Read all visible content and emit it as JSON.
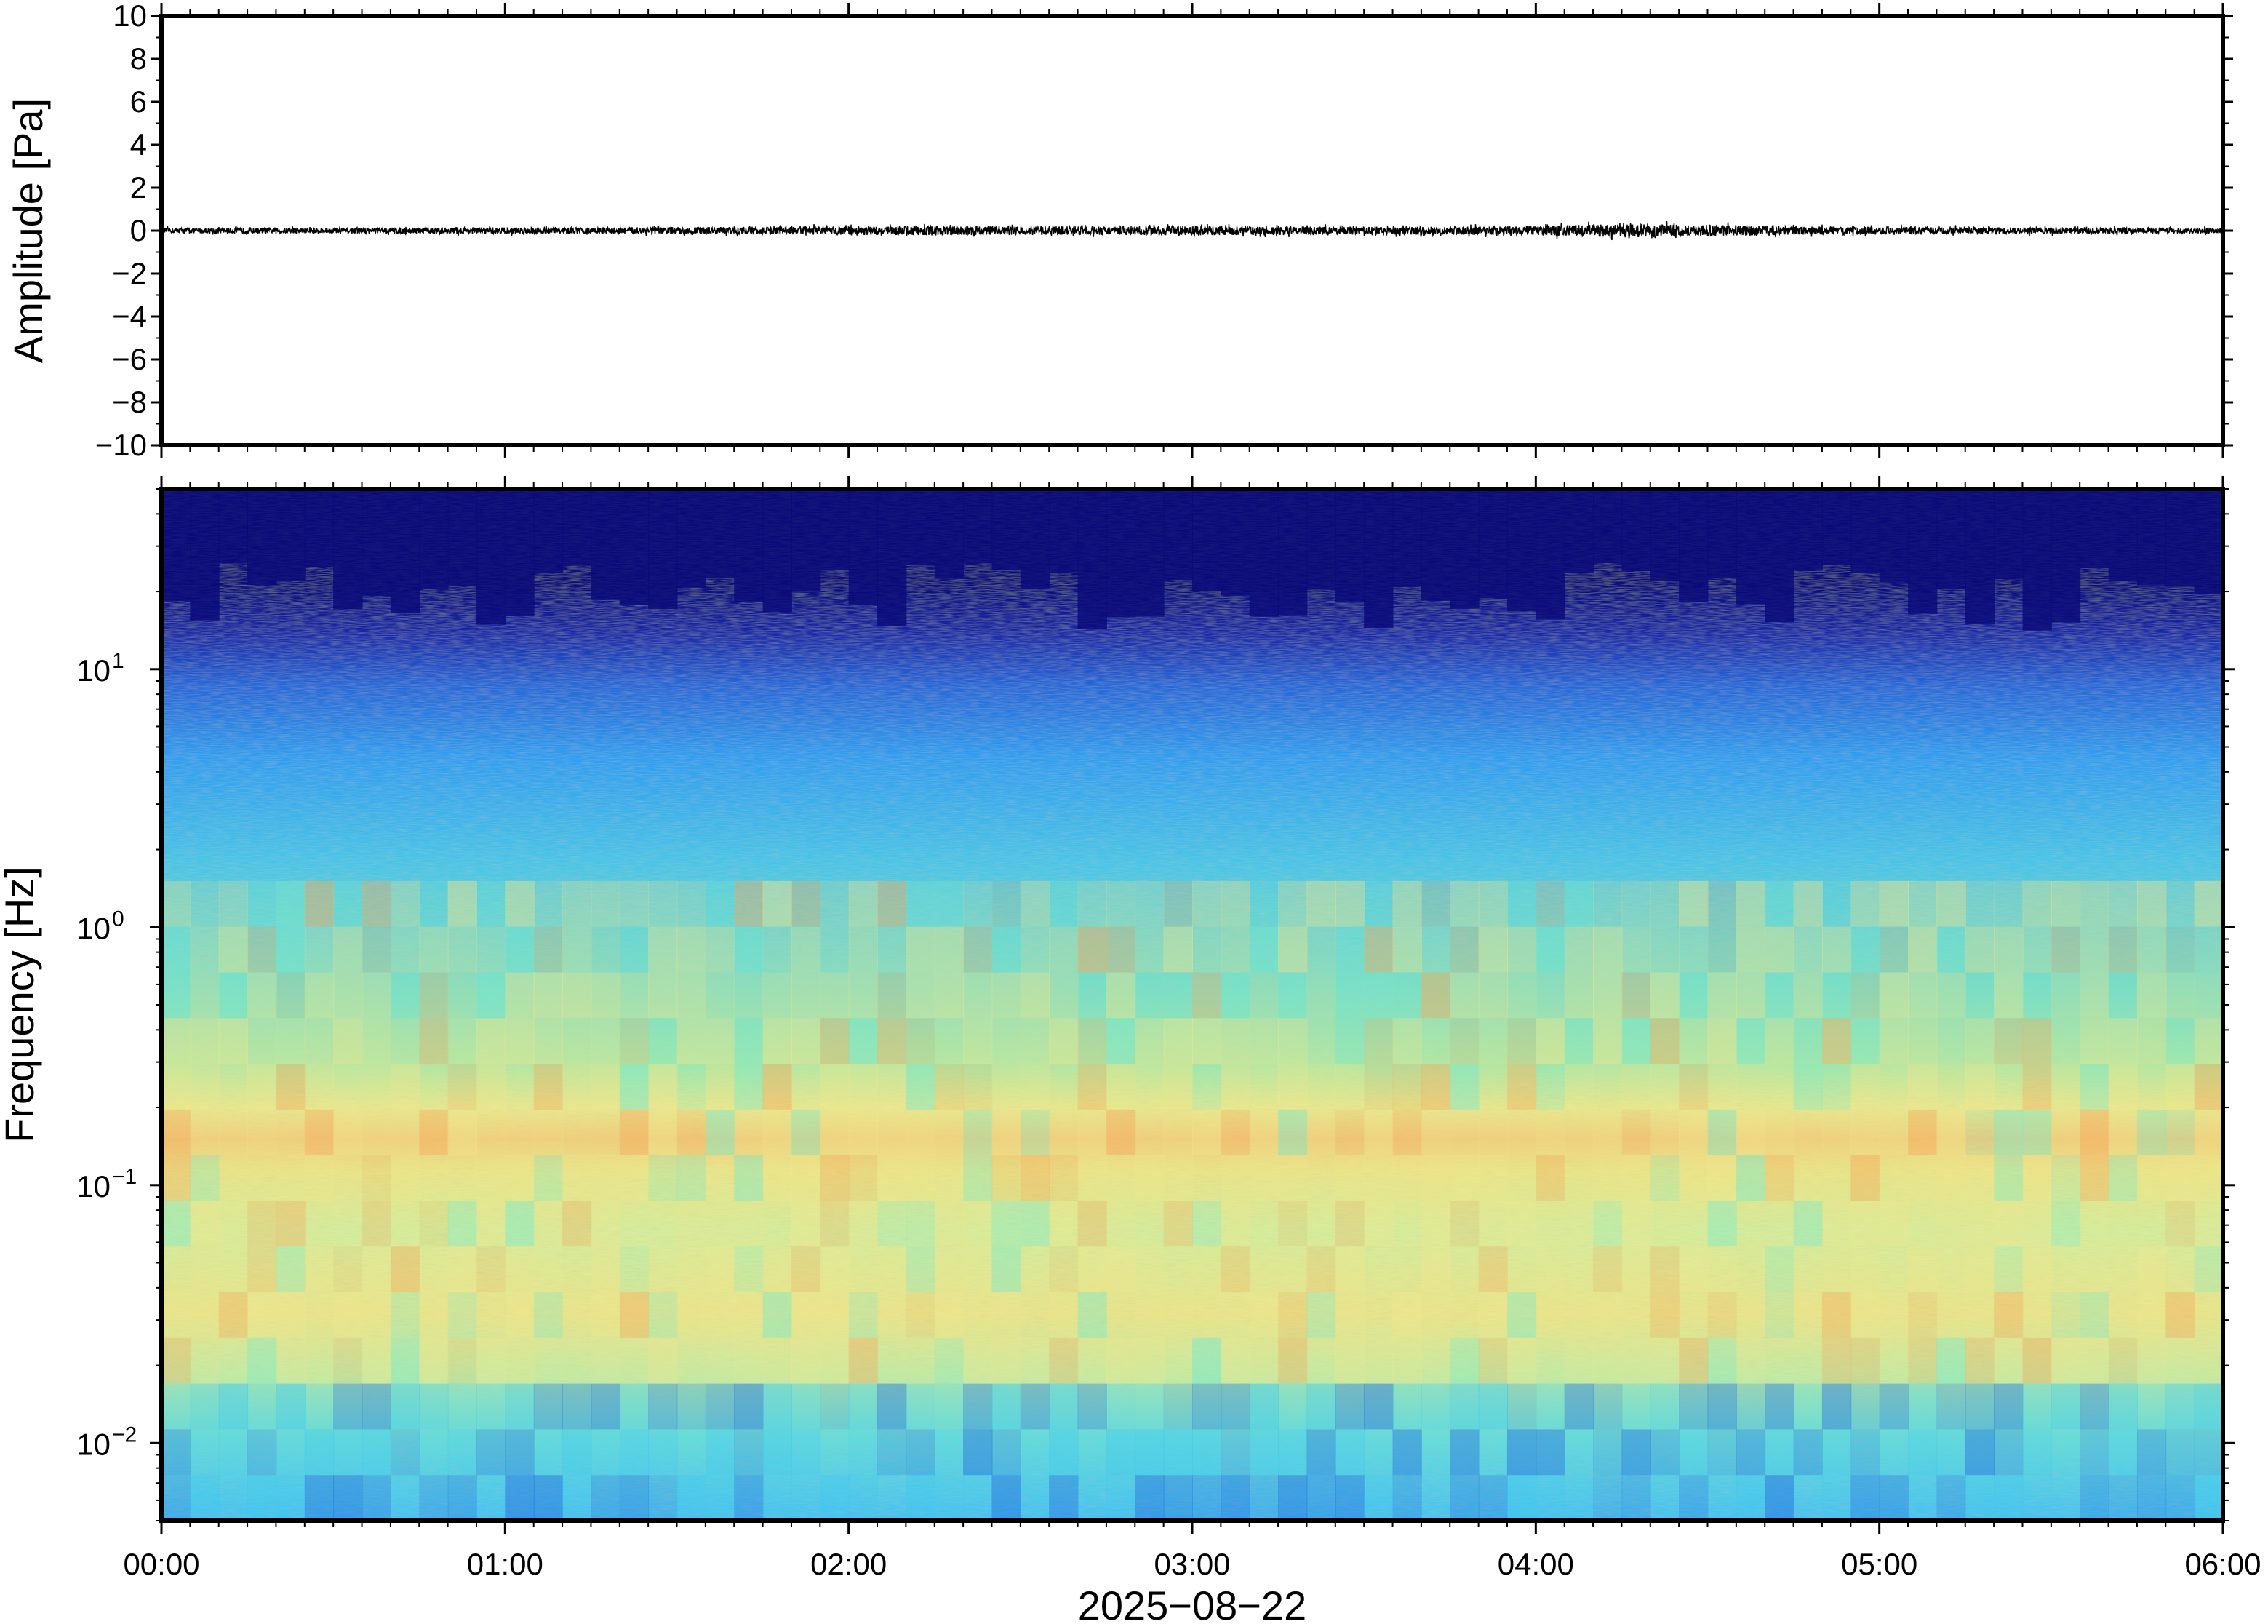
{
  "chart_data": [
    {
      "type": "line",
      "panel": "waveform",
      "ylabel": "Amplitude [Pa]",
      "ylim": [
        -10,
        10
      ],
      "yticks": [
        "10",
        "8",
        "6",
        "4",
        "2",
        "0",
        "−2",
        "−4",
        "−6",
        "−8",
        "−10"
      ],
      "ytick_values": [
        10,
        8,
        6,
        4,
        2,
        0,
        -2,
        -4,
        -6,
        -8,
        -10
      ],
      "xlim_hours": [
        0,
        6
      ],
      "series": [
        {
          "x_hours": [
            0,
            0.25,
            0.5,
            0.75,
            1.0,
            1.25,
            1.5,
            1.75,
            2.0,
            2.25,
            2.5,
            2.75,
            3.0,
            3.25,
            3.5,
            3.75,
            4.0,
            4.25,
            4.5,
            4.75,
            5.0,
            5.25,
            5.5,
            5.75,
            6.0
          ],
          "envelope": [
            0.12,
            0.14,
            0.13,
            0.15,
            0.16,
            0.15,
            0.17,
            0.18,
            0.2,
            0.22,
            0.21,
            0.2,
            0.22,
            0.2,
            0.19,
            0.18,
            0.22,
            0.3,
            0.26,
            0.2,
            0.18,
            0.16,
            0.15,
            0.14,
            0.13
          ],
          "color": "#000000"
        }
      ],
      "grid": false
    },
    {
      "type": "heatmap",
      "panel": "spectrogram",
      "ylabel": "Frequency [Hz]",
      "yscale": "log",
      "ylim": [
        0.005,
        50
      ],
      "yticks": [
        {
          "value": 10,
          "base": "10",
          "exp": "1"
        },
        {
          "value": 1,
          "base": "10",
          "exp": "0"
        },
        {
          "value": 0.1,
          "base": "10",
          "exp": "−1"
        },
        {
          "value": 0.01,
          "base": "10",
          "exp": "−2"
        }
      ],
      "xlabel": "2025−08−22",
      "xlim_hours": [
        0,
        6
      ],
      "xticks": [
        "00:00",
        "01:00",
        "02:00",
        "03:00",
        "04:00",
        "05:00",
        "06:00"
      ],
      "xtick_values": [
        0,
        1,
        2,
        3,
        4,
        5,
        6
      ],
      "colormap": [
        "#0a0a7a",
        "#1e3cc8",
        "#2a8cf0",
        "#3cc8f0",
        "#7ee8c8",
        "#c8f0a0",
        "#f0e68c",
        "#f5b060",
        "#e87040"
      ],
      "grid": false
    }
  ]
}
